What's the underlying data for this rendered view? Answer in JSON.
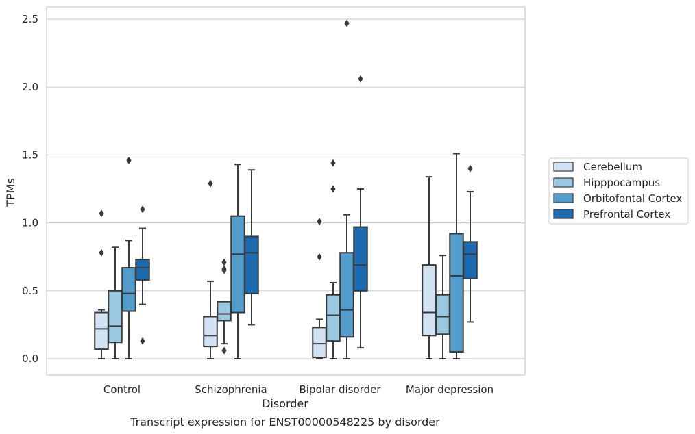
{
  "chart_data": {
    "type": "boxplot",
    "caption": "Transcript expression for ENST00000548225 by disorder",
    "xlabel": "Disorder",
    "ylabel": "TPMs",
    "ylim": [
      -0.12,
      2.6
    ],
    "yticks": [
      0.0,
      0.5,
      1.0,
      1.5,
      2.0,
      2.5
    ],
    "ytick_labels": [
      "0.0",
      "0.5",
      "1.0",
      "1.5",
      "2.0",
      "2.5"
    ],
    "grid": "horizontal",
    "legend_position": "right",
    "categories": [
      "Control",
      "Schizophrenia",
      "Bipolar disorder",
      "Major depression"
    ],
    "series": [
      {
        "name": "Cerebellum",
        "color": "#d1e3f3",
        "boxes": [
          {
            "whisker_low": 0.0,
            "q1": 0.07,
            "median": 0.22,
            "q3": 0.34,
            "whisker_high": 0.36,
            "outliers": [
              0.78,
              1.07
            ]
          },
          {
            "whisker_low": 0.0,
            "q1": 0.09,
            "median": 0.17,
            "q3": 0.31,
            "whisker_high": 0.57,
            "outliers": [
              1.29
            ]
          },
          {
            "whisker_low": 0.0,
            "q1": 0.01,
            "median": 0.11,
            "q3": 0.23,
            "whisker_high": 0.29,
            "outliers": [
              0.75,
              1.01
            ]
          },
          {
            "whisker_low": 0.0,
            "q1": 0.17,
            "median": 0.34,
            "q3": 0.69,
            "whisker_high": 1.34,
            "outliers": []
          }
        ]
      },
      {
        "name": "Hipppocampus",
        "color": "#9ac8e0",
        "boxes": [
          {
            "whisker_low": 0.0,
            "q1": 0.12,
            "median": 0.24,
            "q3": 0.5,
            "whisker_high": 0.82,
            "outliers": []
          },
          {
            "whisker_low": 0.11,
            "q1": 0.28,
            "median": 0.33,
            "q3": 0.42,
            "whisker_high": 0.42,
            "outliers": [
              0.06,
              0.65,
              0.66,
              0.71
            ]
          },
          {
            "whisker_low": 0.0,
            "q1": 0.13,
            "median": 0.32,
            "q3": 0.47,
            "whisker_high": 0.56,
            "outliers": [
              1.25,
              1.44
            ]
          },
          {
            "whisker_low": 0.0,
            "q1": 0.18,
            "median": 0.31,
            "q3": 0.47,
            "whisker_high": 0.76,
            "outliers": []
          }
        ]
      },
      {
        "name": "Orbitofontal Cortex",
        "color": "#529dcc",
        "boxes": [
          {
            "whisker_low": 0.0,
            "q1": 0.35,
            "median": 0.48,
            "q3": 0.67,
            "whisker_high": 0.87,
            "outliers": [
              1.46
            ]
          },
          {
            "whisker_low": 0.0,
            "q1": 0.34,
            "median": 0.77,
            "q3": 1.05,
            "whisker_high": 1.43,
            "outliers": []
          },
          {
            "whisker_low": 0.0,
            "q1": 0.16,
            "median": 0.36,
            "q3": 0.78,
            "whisker_high": 1.06,
            "outliers": [
              2.47
            ]
          },
          {
            "whisker_low": 0.0,
            "q1": 0.05,
            "median": 0.61,
            "q3": 0.92,
            "whisker_high": 1.51,
            "outliers": []
          }
        ]
      },
      {
        "name": "Prefrontal Cortex",
        "color": "#1c6aaf",
        "boxes": [
          {
            "whisker_low": 0.4,
            "q1": 0.58,
            "median": 0.67,
            "q3": 0.73,
            "whisker_high": 0.96,
            "outliers": [
              0.13,
              1.1
            ]
          },
          {
            "whisker_low": 0.25,
            "q1": 0.48,
            "median": 0.78,
            "q3": 0.9,
            "whisker_high": 1.39,
            "outliers": []
          },
          {
            "whisker_low": 0.08,
            "q1": 0.5,
            "median": 0.69,
            "q3": 0.97,
            "whisker_high": 1.25,
            "outliers": [
              2.06
            ]
          },
          {
            "whisker_low": 0.27,
            "q1": 0.59,
            "median": 0.77,
            "q3": 0.86,
            "whisker_high": 1.23,
            "outliers": [
              1.4
            ]
          }
        ]
      }
    ]
  }
}
